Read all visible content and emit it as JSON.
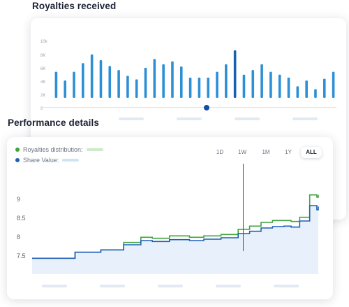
{
  "royalties": {
    "title": "Royalties received",
    "y_ticks": [
      "10k",
      "8K",
      "6K",
      "4K",
      "2K",
      "0"
    ]
  },
  "performance": {
    "title": "Performance details",
    "legend": [
      {
        "label": "Royalties distribution:",
        "color": "#3fa33c"
      },
      {
        "label": "Share Value:",
        "color": "#1e5fb8"
      }
    ],
    "ranges": [
      "1D",
      "1W",
      "1M",
      "1Y",
      "ALL"
    ],
    "active_range": "ALL",
    "y_ticks": [
      "9",
      "8.5",
      "8",
      "7.5"
    ]
  },
  "colors": {
    "bar": "#2d8fd6",
    "bar_highlight": "#165fb1",
    "royalties_line": "#3fa33c",
    "share_line": "#1e5fb8",
    "share_fill": "#e8f1fb"
  },
  "chart_data": [
    {
      "type": "bar",
      "title": "Royalties received",
      "ylim": [
        0,
        10000
      ],
      "values": [
        4500,
        3000,
        4500,
        6000,
        7500,
        6500,
        5500,
        4800,
        3800,
        3200,
        5200,
        6700,
        5800,
        6300,
        5400,
        3500,
        3500,
        3500,
        4500,
        5800,
        8200,
        4000,
        4800,
        5800,
        4500,
        4000,
        3500,
        2000,
        3000,
        1500,
        3300,
        4500
      ],
      "highlight_index": 20
    },
    {
      "type": "line",
      "title": "Performance details",
      "ylim": [
        7.3,
        9.1
      ],
      "series": [
        {
          "name": "Royalties distribution:",
          "x": [
            0,
            0.09,
            0.15,
            0.24,
            0.32,
            0.38,
            0.42,
            0.48,
            0.55,
            0.6,
            0.66,
            0.72,
            0.76,
            0.8,
            0.84,
            0.88,
            0.905,
            0.935,
            0.97,
            0.995,
            1.0
          ],
          "y": [
            7.64,
            7.64,
            7.77,
            7.82,
            7.98,
            8.09,
            8.07,
            8.12,
            8.09,
            8.12,
            8.15,
            8.26,
            8.33,
            8.41,
            8.45,
            8.45,
            8.43,
            8.52,
            9.0,
            8.95,
            9.0
          ]
        },
        {
          "name": "Share Value:",
          "x": [
            0,
            0.09,
            0.15,
            0.24,
            0.32,
            0.38,
            0.42,
            0.48,
            0.55,
            0.6,
            0.66,
            0.72,
            0.76,
            0.8,
            0.84,
            0.88,
            0.905,
            0.935,
            0.97,
            0.995,
            1.0
          ],
          "y": [
            7.64,
            7.64,
            7.77,
            7.82,
            7.93,
            8.02,
            8.0,
            8.04,
            8.02,
            8.05,
            8.08,
            8.17,
            8.22,
            8.29,
            8.32,
            8.33,
            8.31,
            8.44,
            8.77,
            8.68,
            8.75
          ]
        }
      ]
    }
  ]
}
